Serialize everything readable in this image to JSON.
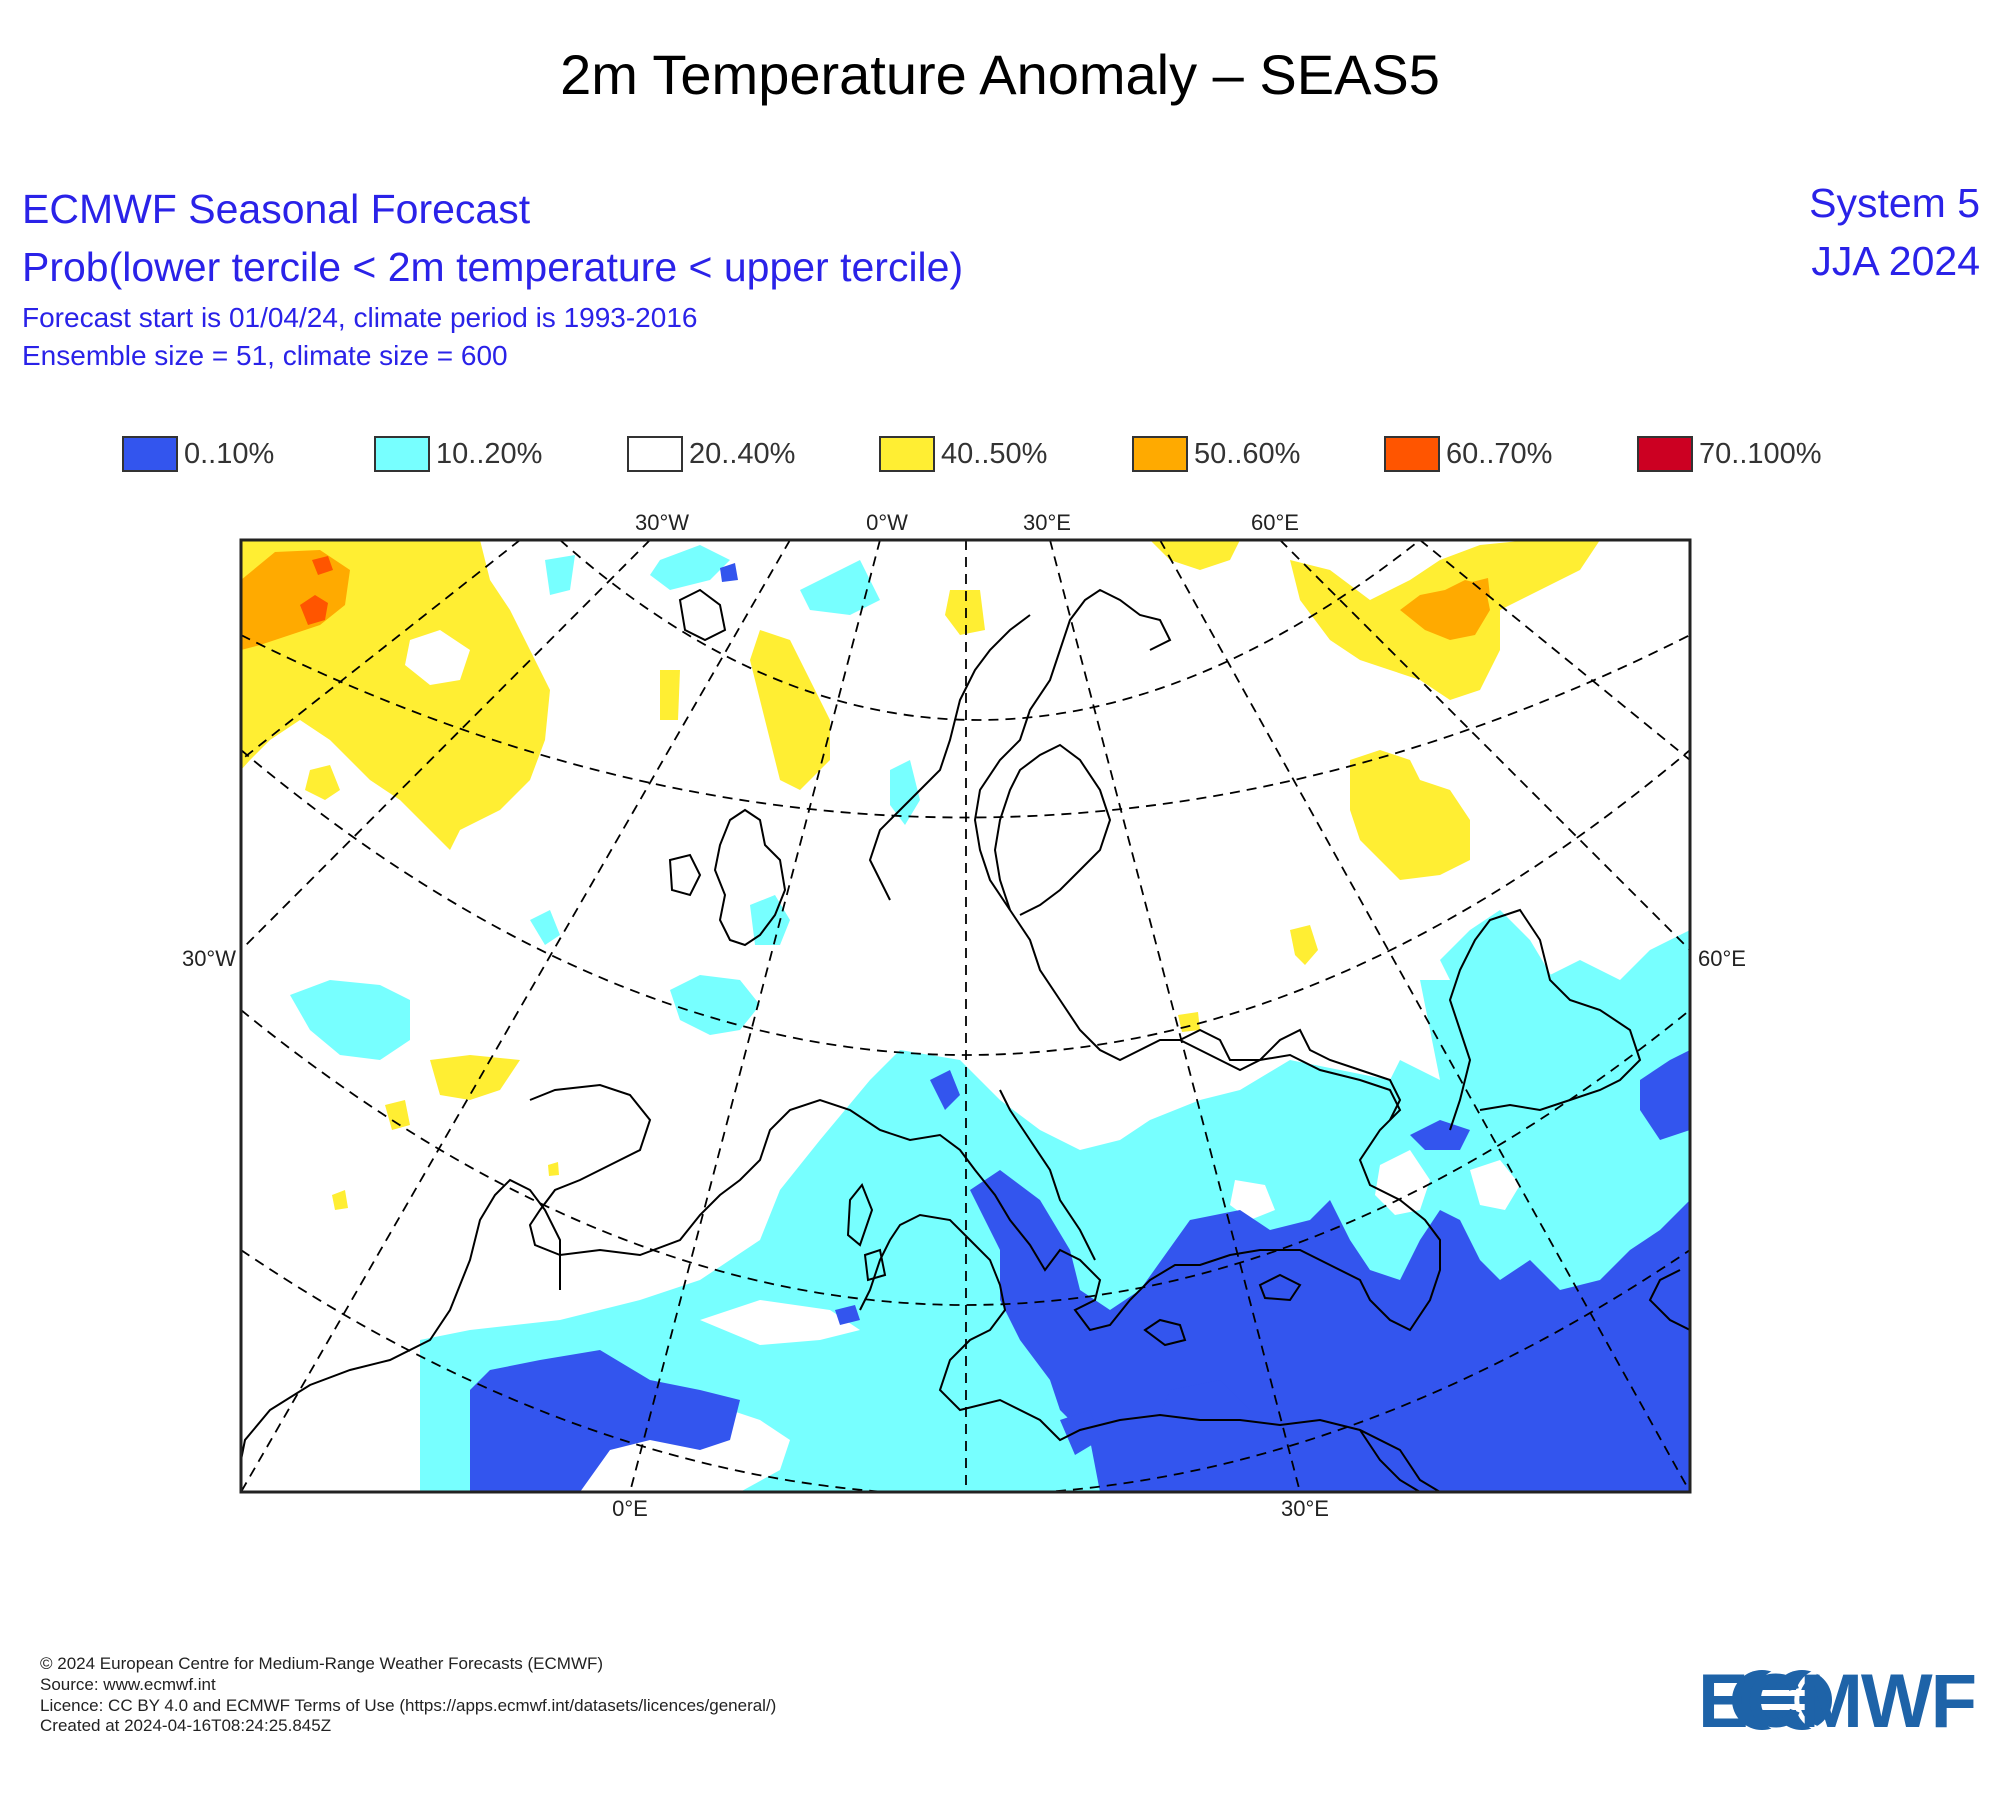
{
  "title": "2m Temperature Anomaly – SEAS5",
  "header": {
    "line1": "ECMWF Seasonal Forecast",
    "line2": "Prob(lower tercile < 2m temperature < upper tercile)",
    "line3": "Forecast start is 01/04/24, climate period is 1993-2016",
    "line4": "Ensemble size = 51, climate size = 600",
    "system": "System 5",
    "season": "JJA 2024"
  },
  "legend": [
    {
      "label": "0..10%",
      "color": "#3355ee"
    },
    {
      "label": "10..20%",
      "color": "#77ffff"
    },
    {
      "label": "20..40%",
      "color": "#ffffff"
    },
    {
      "label": "40..50%",
      "color": "#ffee33"
    },
    {
      "label": "50..60%",
      "color": "#ffaa00"
    },
    {
      "label": "60..70%",
      "color": "#ff5500"
    },
    {
      "label": "70..100%",
      "color": "#cc0022"
    }
  ],
  "map_labels": {
    "top": [
      "30°W",
      "0°W",
      "30°E",
      "60°E"
    ],
    "left": "30°W",
    "right": "60°E",
    "bottom": [
      "0°E",
      "30°E"
    ]
  },
  "footer": {
    "copyright": "© 2024 European Centre for Medium-Range Weather Forecasts (ECMWF)",
    "source": "Source: www.ecmwf.int",
    "licence": "Licence: CC BY 4.0 and ECMWF Terms of Use (https://apps.ecmwf.int/datasets/licences/general/)",
    "created": "Created at 2024-04-16T08:24:25.845Z"
  },
  "logo": {
    "text": "ECMWF",
    "color": "#1e63a8"
  }
}
